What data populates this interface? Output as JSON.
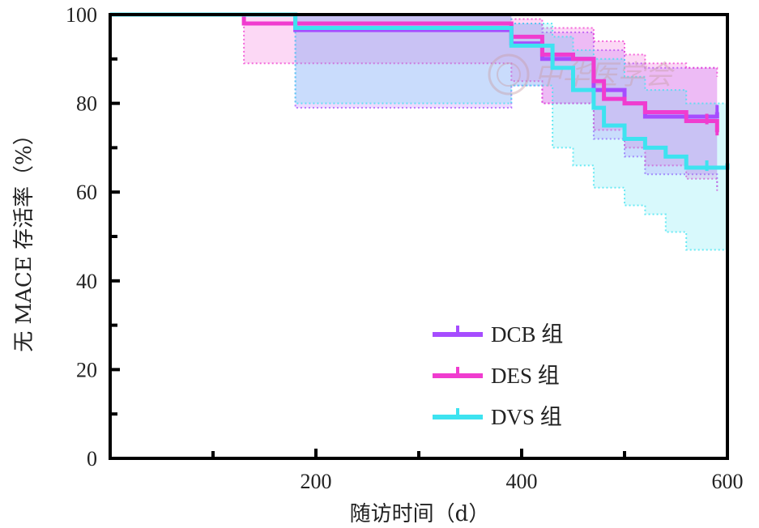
{
  "chart_data": {
    "type": "line",
    "subtype": "kaplan-meier-step",
    "xlabel": "随访时间（d）",
    "ylabel": "无 MACE 存活率（%）",
    "xlim": [
      0,
      600
    ],
    "ylim": [
      0,
      100
    ],
    "xticks": [
      200,
      400,
      600
    ],
    "yticks": [
      0,
      20,
      40,
      60,
      80,
      100
    ],
    "grid": false,
    "legend_position": "lower-center",
    "watermark": "中华医学会",
    "series": [
      {
        "name": "DCB 组",
        "color": "#a64dff",
        "steps": [
          [
            0,
            100
          ],
          [
            180,
            96.5
          ],
          [
            390,
            93.5
          ],
          [
            420,
            90
          ],
          [
            470,
            83
          ],
          [
            500,
            80
          ],
          [
            520,
            77
          ],
          [
            590,
            78
          ]
        ],
        "ci_upper": [
          [
            0,
            100
          ],
          [
            180,
            100
          ],
          [
            390,
            98
          ],
          [
            420,
            96
          ],
          [
            470,
            92
          ],
          [
            500,
            89
          ],
          [
            520,
            88
          ],
          [
            590,
            88
          ]
        ],
        "ci_lower": [
          [
            0,
            100
          ],
          [
            180,
            79
          ],
          [
            390,
            84
          ],
          [
            420,
            80
          ],
          [
            470,
            72
          ],
          [
            500,
            68
          ],
          [
            520,
            64
          ],
          [
            590,
            61
          ]
        ],
        "censored_x": [
          590
        ]
      },
      {
        "name": "DES 组",
        "color": "#f03ccf",
        "steps": [
          [
            0,
            100
          ],
          [
            130,
            98
          ],
          [
            390,
            95
          ],
          [
            420,
            91
          ],
          [
            450,
            90
          ],
          [
            470,
            85
          ],
          [
            480,
            81
          ],
          [
            500,
            80
          ],
          [
            520,
            78
          ],
          [
            560,
            76
          ],
          [
            590,
            73.5
          ]
        ],
        "ci_upper": [
          [
            0,
            100
          ],
          [
            130,
            100
          ],
          [
            390,
            99
          ],
          [
            420,
            97
          ],
          [
            470,
            94
          ],
          [
            500,
            91
          ],
          [
            520,
            89
          ],
          [
            560,
            88
          ],
          [
            590,
            86
          ]
        ],
        "ci_lower": [
          [
            0,
            100
          ],
          [
            130,
            89
          ],
          [
            390,
            85
          ],
          [
            420,
            80
          ],
          [
            470,
            74
          ],
          [
            500,
            70
          ],
          [
            520,
            66
          ],
          [
            560,
            63
          ],
          [
            590,
            60
          ]
        ],
        "censored_x": [
          580,
          590
        ]
      },
      {
        "name": "DVS 组",
        "color": "#3de3f0",
        "steps": [
          [
            0,
            100
          ],
          [
            180,
            97
          ],
          [
            390,
            93
          ],
          [
            430,
            88
          ],
          [
            450,
            83
          ],
          [
            470,
            79
          ],
          [
            480,
            75
          ],
          [
            500,
            72
          ],
          [
            520,
            70
          ],
          [
            540,
            68
          ],
          [
            560,
            65.5
          ],
          [
            600,
            66.5
          ]
        ],
        "ci_upper": [
          [
            0,
            100
          ],
          [
            180,
            100
          ],
          [
            390,
            98
          ],
          [
            430,
            95
          ],
          [
            450,
            92
          ],
          [
            470,
            90
          ],
          [
            500,
            86
          ],
          [
            520,
            83
          ],
          [
            560,
            80
          ],
          [
            600,
            79
          ]
        ],
        "ci_lower": [
          [
            0,
            100
          ],
          [
            180,
            80
          ],
          [
            390,
            84
          ],
          [
            430,
            70
          ],
          [
            450,
            66
          ],
          [
            470,
            61
          ],
          [
            500,
            57
          ],
          [
            520,
            55
          ],
          [
            540,
            51
          ],
          [
            560,
            47
          ],
          [
            600,
            46
          ]
        ],
        "censored_x": [
          580,
          600
        ]
      }
    ]
  }
}
